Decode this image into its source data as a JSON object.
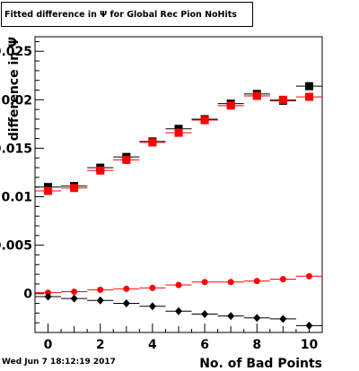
{
  "title": "Fitted difference in  Ψ  for Global Rec Pion NoHits",
  "timestamp": "Wed Jun  7 18:12:19 2017",
  "chart_data": {
    "type": "scatter",
    "xlabel": "No. of Bad Points",
    "ylabel": "difference in Ψ",
    "xlim": [
      -0.5,
      10.5
    ],
    "ylim": [
      -0.004,
      0.0265
    ],
    "x_ticks": [
      0,
      2,
      4,
      6,
      8,
      10
    ],
    "x_tick_labels": [
      "0",
      "2",
      "4",
      "6",
      "8",
      "10"
    ],
    "y_ticks": [
      0,
      0.005,
      0.01,
      0.015,
      0.02,
      0.025
    ],
    "y_tick_labels": [
      "0",
      "0.005",
      "0.01",
      "0.015",
      "0.02",
      "0.025"
    ],
    "x": [
      0,
      1,
      2,
      3,
      4,
      5,
      6,
      7,
      8,
      9,
      10
    ],
    "series": [
      {
        "marker": "square",
        "color": "#000000",
        "values": [
          0.011,
          0.0111,
          0.013,
          0.0141,
          0.0157,
          0.017,
          0.018,
          0.0196,
          0.0206,
          0.0199,
          0.0214
        ]
      },
      {
        "marker": "square",
        "color": "#ff0000",
        "values": [
          0.0106,
          0.0109,
          0.0127,
          0.0138,
          0.0156,
          0.0166,
          0.0179,
          0.0194,
          0.0204,
          0.02,
          0.0203
        ]
      },
      {
        "marker": "circle",
        "color": "#ff0000",
        "values": [
          0.0001,
          0.0002,
          0.0004,
          0.0005,
          0.0006,
          0.0009,
          0.0012,
          0.0012,
          0.0013,
          0.0015,
          0.0018
        ]
      },
      {
        "marker": "diamond",
        "color": "#000000",
        "values": [
          -0.0003,
          -0.0005,
          -0.0007,
          -0.001,
          -0.0013,
          -0.0018,
          -0.0021,
          -0.0023,
          -0.0025,
          -0.0026,
          -0.0033
        ]
      }
    ]
  }
}
